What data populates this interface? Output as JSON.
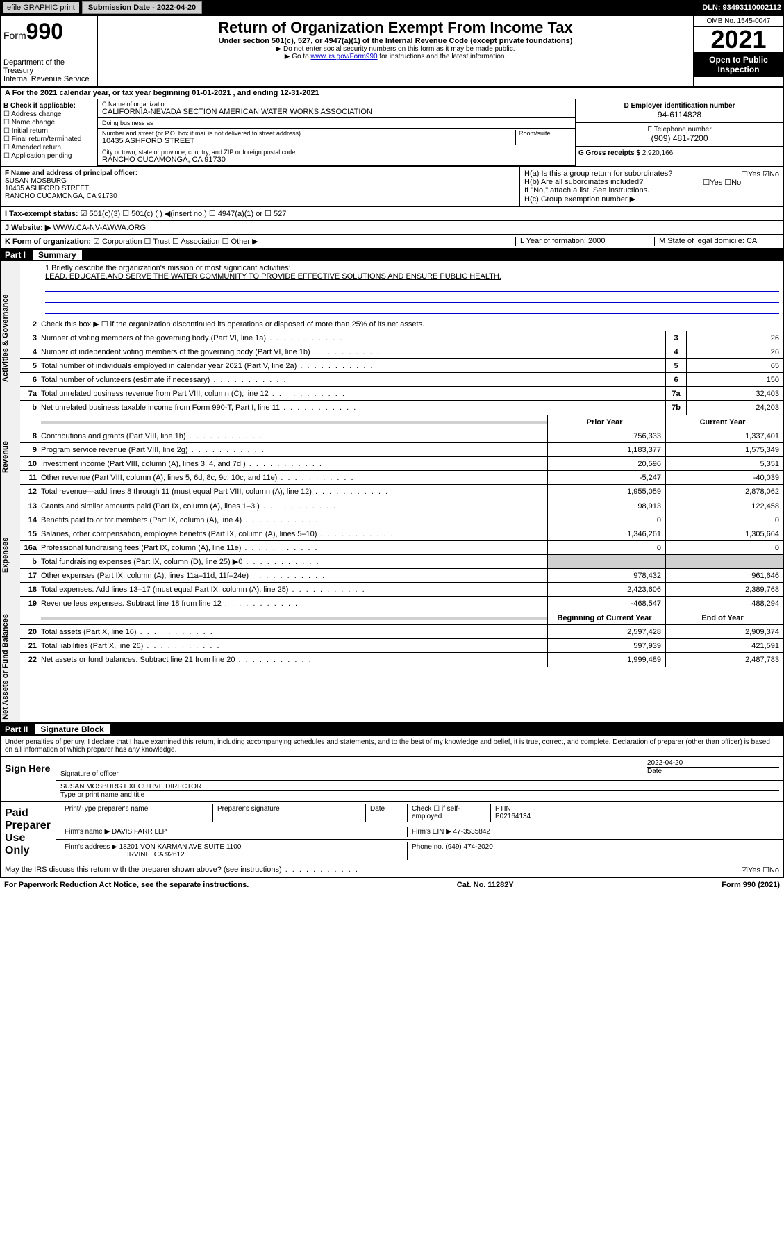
{
  "topbar": {
    "efile": "efile GRAPHIC print",
    "subdate_label": "Submission Date - 2022-04-20",
    "dln": "DLN: 93493110002112"
  },
  "header": {
    "form_prefix": "Form",
    "form_number": "990",
    "dept": "Department of the Treasury",
    "irs": "Internal Revenue Service",
    "title": "Return of Organization Exempt From Income Tax",
    "subtitle": "Under section 501(c), 527, or 4947(a)(1) of the Internal Revenue Code (except private foundations)",
    "note1": "▶ Do not enter social security numbers on this form as it may be made public.",
    "note2_pre": "▶ Go to ",
    "note2_link": "www.irs.gov/Form990",
    "note2_post": " for instructions and the latest information.",
    "omb": "OMB No. 1545-0047",
    "year": "2021",
    "inspection": "Open to Public Inspection"
  },
  "row_a": "A For the 2021 calendar year, or tax year beginning 01-01-2021   , and ending 12-31-2021",
  "col_b": {
    "title": "B Check if applicable:",
    "items": [
      "Address change",
      "Name change",
      "Initial return",
      "Final return/terminated",
      "Amended return",
      "Application pending"
    ]
  },
  "col_c": {
    "name_label": "C Name of organization",
    "name": "CALIFORNIA-NEVADA SECTION AMERICAN WATER WORKS ASSOCIATION",
    "dba_label": "Doing business as",
    "dba": "",
    "street_label": "Number and street (or P.O. box if mail is not delivered to street address)",
    "room_label": "Room/suite",
    "street": "10435 ASHFORD STREET",
    "city_label": "City or town, state or province, country, and ZIP or foreign postal code",
    "city": "RANCHO CUCAMONGA, CA  91730"
  },
  "col_d": {
    "ein_label": "D Employer identification number",
    "ein": "94-6114828",
    "phone_label": "E Telephone number",
    "phone": "(909) 481-7200",
    "gross_label": "G Gross receipts $",
    "gross": "2,920,166"
  },
  "row_f": {
    "label": "F  Name and address of principal officer:",
    "name": "SUSAN MOSBURG",
    "addr1": "10435 ASHFORD STREET",
    "addr2": "RANCHO CUCAMONGA, CA  91730"
  },
  "row_h": {
    "ha": "H(a)  Is this a group return for subordinates?",
    "ha_ans": "☐Yes ☑No",
    "hb": "H(b)  Are all subordinates included?",
    "hb_ans": "☐Yes ☐No",
    "hb_note": "If \"No,\" attach a list. See instructions.",
    "hc": "H(c)  Group exemption number ▶"
  },
  "row_i": {
    "label": "I    Tax-exempt status:",
    "opts": "☑ 501(c)(3)   ☐ 501(c) (  ) ◀(insert no.)   ☐ 4947(a)(1) or  ☐ 527"
  },
  "row_j": {
    "label": "J    Website: ▶",
    "val": "WWW.CA-NV-AWWA.ORG"
  },
  "row_k": {
    "label": "K Form of organization:",
    "opts": "☑ Corporation  ☐ Trust  ☐ Association  ☐ Other ▶",
    "l": "L Year of formation: 2000",
    "m": "M State of legal domicile: CA"
  },
  "part1": {
    "num": "Part I",
    "title": "Summary"
  },
  "mission": {
    "prompt": "1  Briefly describe the organization's mission or most significant activities:",
    "text": "LEAD, EDUCATE,AND SERVE THE WATER COMMUNITY TO PROVIDE EFFECTIVE SOLUTIONS AND ENSURE PUBLIC HEALTH."
  },
  "line2": "Check this box ▶ ☐  if the organization discontinued its operations or disposed of more than 25% of its net assets.",
  "sidebars": {
    "gov": "Activities & Governance",
    "rev": "Revenue",
    "exp": "Expenses",
    "net": "Net Assets or Fund Balances"
  },
  "gov_lines": [
    {
      "n": "3",
      "d": "Number of voting members of the governing body (Part VI, line 1a)",
      "box": "3",
      "v": "26"
    },
    {
      "n": "4",
      "d": "Number of independent voting members of the governing body (Part VI, line 1b)",
      "box": "4",
      "v": "26"
    },
    {
      "n": "5",
      "d": "Total number of individuals employed in calendar year 2021 (Part V, line 2a)",
      "box": "5",
      "v": "65"
    },
    {
      "n": "6",
      "d": "Total number of volunteers (estimate if necessary)",
      "box": "6",
      "v": "150"
    },
    {
      "n": "7a",
      "d": "Total unrelated business revenue from Part VIII, column (C), line 12",
      "box": "7a",
      "v": "32,403"
    },
    {
      "n": "b",
      "d": "Net unrelated business taxable income from Form 990-T, Part I, line 11",
      "box": "7b",
      "v": "24,203"
    }
  ],
  "pycy_head": {
    "py": "Prior Year",
    "cy": "Current Year"
  },
  "rev_lines": [
    {
      "n": "8",
      "d": "Contributions and grants (Part VIII, line 1h)",
      "py": "756,333",
      "cy": "1,337,401"
    },
    {
      "n": "9",
      "d": "Program service revenue (Part VIII, line 2g)",
      "py": "1,183,377",
      "cy": "1,575,349"
    },
    {
      "n": "10",
      "d": "Investment income (Part VIII, column (A), lines 3, 4, and 7d )",
      "py": "20,596",
      "cy": "5,351"
    },
    {
      "n": "11",
      "d": "Other revenue (Part VIII, column (A), lines 5, 6d, 8c, 9c, 10c, and 11e)",
      "py": "-5,247",
      "cy": "-40,039"
    },
    {
      "n": "12",
      "d": "Total revenue—add lines 8 through 11 (must equal Part VIII, column (A), line 12)",
      "py": "1,955,059",
      "cy": "2,878,062"
    }
  ],
  "exp_lines": [
    {
      "n": "13",
      "d": "Grants and similar amounts paid (Part IX, column (A), lines 1–3 )",
      "py": "98,913",
      "cy": "122,458"
    },
    {
      "n": "14",
      "d": "Benefits paid to or for members (Part IX, column (A), line 4)",
      "py": "0",
      "cy": "0"
    },
    {
      "n": "15",
      "d": "Salaries, other compensation, employee benefits (Part IX, column (A), lines 5–10)",
      "py": "1,346,261",
      "cy": "1,305,664"
    },
    {
      "n": "16a",
      "d": "Professional fundraising fees (Part IX, column (A), line 11e)",
      "py": "0",
      "cy": "0"
    },
    {
      "n": "b",
      "d": "Total fundraising expenses (Part IX, column (D), line 25) ▶0",
      "py": "",
      "cy": "",
      "grey": true
    },
    {
      "n": "17",
      "d": "Other expenses (Part IX, column (A), lines 11a–11d, 11f–24e)",
      "py": "978,432",
      "cy": "961,646"
    },
    {
      "n": "18",
      "d": "Total expenses. Add lines 13–17 (must equal Part IX, column (A), line 25)",
      "py": "2,423,606",
      "cy": "2,389,768"
    },
    {
      "n": "19",
      "d": "Revenue less expenses. Subtract line 18 from line 12",
      "py": "-468,547",
      "cy": "488,294"
    }
  ],
  "net_head": {
    "py": "Beginning of Current Year",
    "cy": "End of Year"
  },
  "net_lines": [
    {
      "n": "20",
      "d": "Total assets (Part X, line 16)",
      "py": "2,597,428",
      "cy": "2,909,374"
    },
    {
      "n": "21",
      "d": "Total liabilities (Part X, line 26)",
      "py": "597,939",
      "cy": "421,591"
    },
    {
      "n": "22",
      "d": "Net assets or fund balances. Subtract line 21 from line 20",
      "py": "1,999,489",
      "cy": "2,487,783"
    }
  ],
  "part2": {
    "num": "Part II",
    "title": "Signature Block"
  },
  "penalties": "Under penalties of perjury, I declare that I have examined this return, including accompanying schedules and statements, and to the best of my knowledge and belief, it is true, correct, and complete. Declaration of preparer (other than officer) is based on all information of which preparer has any knowledge.",
  "sign": {
    "here": "Sign Here",
    "sig_officer": "Signature of officer",
    "date": "2022-04-20",
    "date_label": "Date",
    "name": "SUSAN MOSBURG  EXECUTIVE DIRECTOR",
    "name_label": "Type or print name and title"
  },
  "preparer": {
    "label": "Paid Preparer Use Only",
    "h_name": "Print/Type preparer's name",
    "h_sig": "Preparer's signature",
    "h_date": "Date",
    "h_check": "Check ☐ if self-employed",
    "h_ptin": "PTIN",
    "ptin": "P02164134",
    "firm_name_label": "Firm's name   ▶",
    "firm_name": "DAVIS FARR LLP",
    "firm_ein_label": "Firm's EIN ▶",
    "firm_ein": "47-3535842",
    "firm_addr_label": "Firm's address ▶",
    "firm_addr1": "18201 VON KARMAN AVE SUITE 1100",
    "firm_addr2": "IRVINE, CA  92612",
    "phone_label": "Phone no.",
    "phone": "(949) 474-2020"
  },
  "discuss": "May the IRS discuss this return with the preparer shown above? (see instructions)",
  "discuss_ans": "☑Yes  ☐No",
  "footer": {
    "paperwork": "For Paperwork Reduction Act Notice, see the separate instructions.",
    "cat": "Cat. No. 11282Y",
    "form": "Form 990 (2021)"
  }
}
